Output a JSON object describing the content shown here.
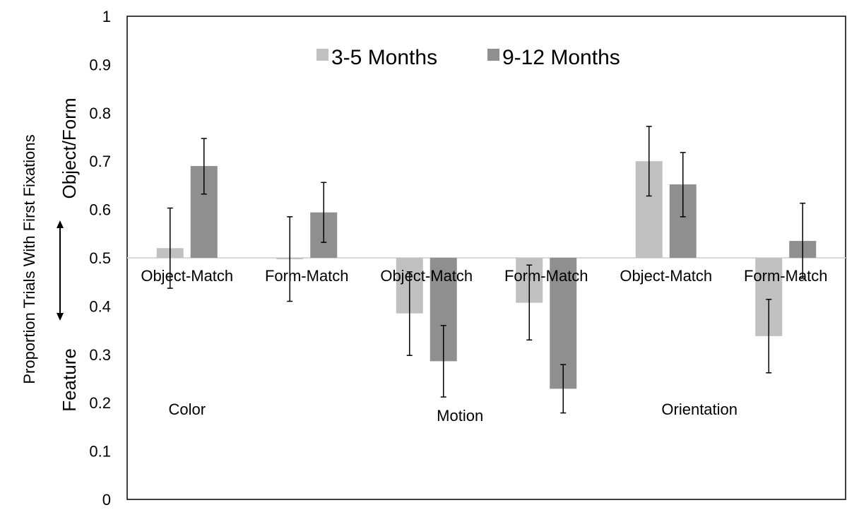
{
  "chart_data": {
    "type": "bar",
    "categories": [
      "Object-Match",
      "Form-Match",
      "Object-Match",
      "Form-Match",
      "Object-Match",
      "Form-Match"
    ],
    "groups": [
      "Color",
      "Motion",
      "Orientation"
    ],
    "series": [
      {
        "name": "3-5 Months",
        "color": "#c0c0c0",
        "values": [
          0.52,
          0.497,
          0.385,
          0.407,
          0.7,
          0.338
        ],
        "error_low": [
          0.437,
          0.41,
          0.298,
          0.33,
          0.628,
          0.262
        ],
        "error_high": [
          0.603,
          0.585,
          0.471,
          0.485,
          0.772,
          0.414
        ]
      },
      {
        "name": "9-12 Months",
        "color": "#8f8f8f",
        "values": [
          0.69,
          0.594,
          0.286,
          0.229,
          0.652,
          0.535
        ],
        "error_low": [
          0.632,
          0.532,
          0.212,
          0.179,
          0.585,
          0.458
        ],
        "error_high": [
          0.747,
          0.656,
          0.36,
          0.279,
          0.718,
          0.613
        ]
      }
    ],
    "baseline": 0.5,
    "ylim": [
      0,
      1
    ],
    "yticks": [
      "0",
      "0.1",
      "0.2",
      "0.3",
      "0.4",
      "0.5",
      "0.6",
      "0.7",
      "0.8",
      "0.9",
      "1"
    ],
    "ylabel": "Proportion Trials With First  Fixations",
    "y_upper_label": "Object/Form",
    "y_lower_label": "Feature",
    "legend_position": "top-center"
  }
}
